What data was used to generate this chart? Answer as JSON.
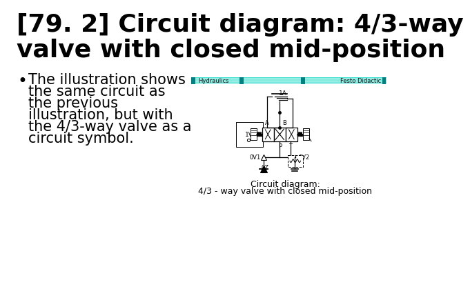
{
  "title_line1": "[79. 2] Circuit diagram: 4/3-way",
  "title_line2": "valve with closed mid-position",
  "bullet_char": "•",
  "bullet_text_lines": [
    "The illustration shows",
    "the same circuit as",
    "the previous",
    "illustration, but with",
    "the 4/3-way valve as a",
    "circuit symbol."
  ],
  "caption_line1": "Circuit diagram:",
  "caption_line2": "4/3 - way valve with closed mid-position",
  "header_text_left": "Hydraulics",
  "header_text_right": "Festo Didactic",
  "bg_color": "#ffffff",
  "title_color": "#000000",
  "text_color": "#000000",
  "header_bg": "#00d4d4",
  "diagram_color": "#000000",
  "title_fontsize": 26,
  "bullet_fontsize": 15,
  "caption_fontsize": 9
}
